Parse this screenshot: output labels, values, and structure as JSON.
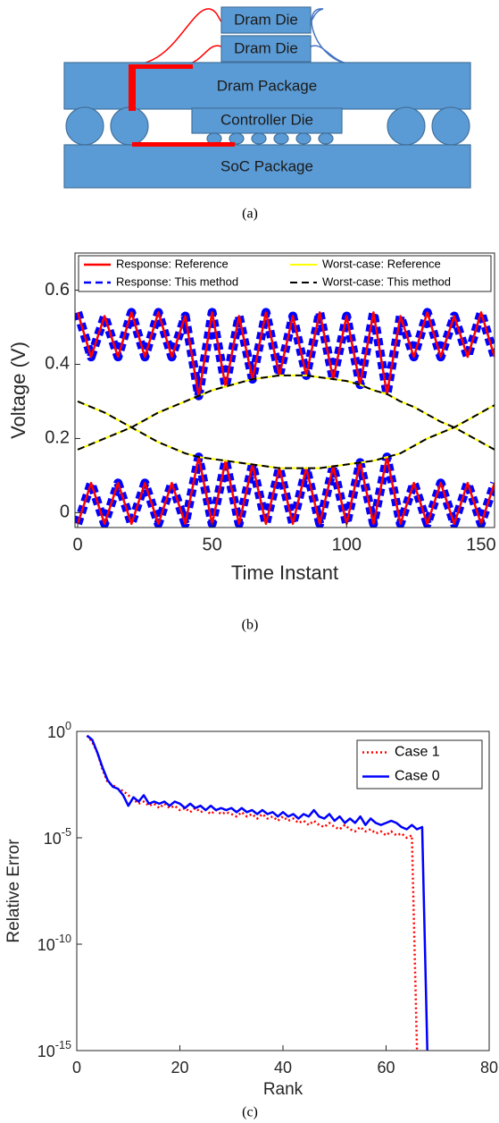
{
  "diagram": {
    "labels": [
      "Dram Die",
      "Dram Die",
      "Dram Package",
      "Controller Die",
      "SoC Package"
    ],
    "caption": "(a)"
  },
  "chart_data": [
    {
      "type": "line",
      "caption": "(b)",
      "xlabel": "Time Instant",
      "ylabel": "Voltage (V)",
      "xlim": [
        -1,
        155
      ],
      "xticks": [
        0,
        50,
        100,
        150
      ],
      "ylim": [
        -0.04,
        0.7
      ],
      "yticks": [
        0,
        0.2,
        0.4,
        0.6
      ],
      "legend": "top",
      "legend_columns": 2,
      "x": [
        0,
        5,
        10,
        15,
        20,
        25,
        30,
        35,
        40,
        45,
        50,
        55,
        60,
        65,
        70,
        75,
        80,
        85,
        90,
        95,
        100,
        105,
        110,
        115,
        120,
        125,
        130,
        135,
        140,
        145,
        150,
        155
      ],
      "series": [
        {
          "name": "Response: Reference",
          "color": "#ff0000",
          "style": "solid",
          "traces": [
            [
              0.54,
              0.42,
              0.53,
              0.42,
              0.54,
              0.42,
              0.54,
              0.42,
              0.53,
              0.315,
              0.54,
              0.34,
              0.53,
              0.36,
              0.54,
              0.37,
              0.53,
              0.37,
              0.54,
              0.36,
              0.53,
              0.345,
              0.54,
              0.32,
              0.53,
              0.42,
              0.54,
              0.42,
              0.53,
              0.42,
              0.54,
              0.42
            ],
            [
              -0.03,
              0.08,
              -0.03,
              0.08,
              -0.03,
              0.08,
              -0.03,
              0.08,
              -0.03,
              0.15,
              -0.03,
              0.14,
              -0.03,
              0.13,
              -0.03,
              0.12,
              -0.03,
              0.12,
              -0.03,
              0.125,
              -0.03,
              0.135,
              -0.03,
              0.15,
              -0.03,
              0.08,
              -0.03,
              0.08,
              -0.03,
              0.08,
              -0.03,
              0.08
            ]
          ]
        },
        {
          "name": "Response: This method",
          "color": "#0000ff",
          "style": "dashed",
          "traces": [
            [
              0.54,
              0.42,
              0.53,
              0.42,
              0.54,
              0.42,
              0.54,
              0.42,
              0.53,
              0.315,
              0.54,
              0.34,
              0.53,
              0.36,
              0.54,
              0.37,
              0.53,
              0.37,
              0.54,
              0.36,
              0.53,
              0.345,
              0.54,
              0.32,
              0.53,
              0.42,
              0.54,
              0.42,
              0.53,
              0.42,
              0.54,
              0.42
            ],
            [
              -0.03,
              0.08,
              -0.03,
              0.08,
              -0.03,
              0.08,
              -0.03,
              0.08,
              -0.03,
              0.15,
              -0.03,
              0.14,
              -0.03,
              0.13,
              -0.03,
              0.12,
              -0.03,
              0.12,
              -0.03,
              0.125,
              -0.03,
              0.135,
              -0.03,
              0.15,
              -0.03,
              0.08,
              -0.03,
              0.08,
              -0.03,
              0.08,
              -0.03,
              0.08
            ]
          ]
        },
        {
          "name": "Worst-case: Reference",
          "color": "#ffff00",
          "style": "solid",
          "traces": [
            [
              0.17,
              0.185,
              0.2,
              0.215,
              0.23,
              0.25,
              0.27,
              0.285,
              0.3,
              0.315,
              0.33,
              0.34,
              0.35,
              0.36,
              0.365,
              0.37,
              0.37,
              0.37,
              0.365,
              0.36,
              0.355,
              0.345,
              0.33,
              0.32,
              0.3,
              0.285,
              0.265,
              0.245,
              0.23,
              0.21,
              0.19,
              0.17
            ],
            [
              0.3,
              0.285,
              0.27,
              0.25,
              0.23,
              0.21,
              0.19,
              0.175,
              0.16,
              0.15,
              0.145,
              0.14,
              0.135,
              0.13,
              0.125,
              0.12,
              0.12,
              0.12,
              0.12,
              0.125,
              0.13,
              0.135,
              0.14,
              0.15,
              0.16,
              0.18,
              0.2,
              0.215,
              0.23,
              0.25,
              0.27,
              0.29
            ]
          ]
        },
        {
          "name": "Worst-case: This method",
          "color": "#000000",
          "style": "dashed",
          "traces": [
            [
              0.17,
              0.185,
              0.2,
              0.215,
              0.23,
              0.25,
              0.27,
              0.285,
              0.3,
              0.315,
              0.33,
              0.34,
              0.35,
              0.36,
              0.365,
              0.37,
              0.37,
              0.37,
              0.365,
              0.36,
              0.355,
              0.345,
              0.33,
              0.32,
              0.3,
              0.285,
              0.265,
              0.245,
              0.23,
              0.21,
              0.19,
              0.17
            ],
            [
              0.3,
              0.285,
              0.27,
              0.25,
              0.23,
              0.21,
              0.19,
              0.175,
              0.16,
              0.15,
              0.145,
              0.14,
              0.135,
              0.13,
              0.125,
              0.12,
              0.12,
              0.12,
              0.12,
              0.125,
              0.13,
              0.135,
              0.14,
              0.15,
              0.16,
              0.18,
              0.2,
              0.215,
              0.23,
              0.25,
              0.27,
              0.29
            ]
          ]
        }
      ]
    },
    {
      "type": "line",
      "caption": "(c)",
      "xlabel": "Rank",
      "ylabel": "Relative Error",
      "xlim": [
        0,
        80
      ],
      "xticks": [
        0,
        20,
        40,
        60,
        80
      ],
      "ylim": [
        1e-15,
        1
      ],
      "log_y": true,
      "yticks": [
        {
          "value": 1e-15,
          "label": "10^-15"
        },
        {
          "value": 1e-10,
          "label": "10^-10"
        },
        {
          "value": 1e-05,
          "label": "10^-5"
        },
        {
          "value": 1,
          "label": "10^0"
        }
      ],
      "legend": "upper right",
      "legend_columns": 1,
      "series": [
        {
          "name": "Case 1",
          "color": "#ff0000",
          "style": "dotted",
          "x": [
            2,
            3,
            4,
            5,
            6,
            7,
            8,
            9,
            10,
            11,
            12,
            13,
            14,
            15,
            16,
            17,
            18,
            19,
            20,
            21,
            22,
            23,
            24,
            25,
            26,
            27,
            28,
            29,
            30,
            31,
            32,
            33,
            34,
            35,
            36,
            37,
            38,
            39,
            40,
            41,
            42,
            43,
            44,
            45,
            46,
            47,
            48,
            49,
            50,
            51,
            52,
            53,
            54,
            55,
            56,
            57,
            58,
            59,
            60,
            61,
            62,
            63,
            64,
            65,
            66
          ],
          "values": [
            0.63,
            0.32,
            0.1,
            0.016,
            0.004,
            0.003,
            0.002,
            0.0016,
            0.001,
            0.00063,
            0.0004,
            0.0005,
            0.00032,
            0.0004,
            0.00025,
            0.0004,
            0.00025,
            0.00032,
            0.0002,
            0.00025,
            0.00016,
            0.00025,
            0.00016,
            0.0002,
            0.00013,
            0.0002,
            0.00013,
            0.00016,
            0.00013,
            0.0001,
            0.00016,
            0.0001,
            0.00013,
            8e-05,
            0.00013,
            8e-05,
            0.0001,
            6.3e-05,
            0.0001,
            6.3e-05,
            8e-05,
            5e-05,
            6.3e-05,
            4e-05,
            6.3e-05,
            4e-05,
            3.2e-05,
            5e-05,
            3.2e-05,
            2.5e-05,
            4e-05,
            2.5e-05,
            2e-05,
            3.2e-05,
            2e-05,
            2.5e-05,
            1.6e-05,
            2e-05,
            1.3e-05,
            2e-05,
            1.3e-05,
            1.6e-05,
            1e-05,
            1.3e-05,
            1e-15
          ]
        },
        {
          "name": "Case 0",
          "color": "#0000ff",
          "style": "solid",
          "x": [
            2,
            3,
            4,
            5,
            6,
            7,
            8,
            9,
            10,
            11,
            12,
            13,
            14,
            15,
            16,
            17,
            18,
            19,
            20,
            21,
            22,
            23,
            24,
            25,
            26,
            27,
            28,
            29,
            30,
            31,
            32,
            33,
            34,
            35,
            36,
            37,
            38,
            39,
            40,
            41,
            42,
            43,
            44,
            45,
            46,
            47,
            48,
            49,
            50,
            51,
            52,
            53,
            54,
            55,
            56,
            57,
            58,
            59,
            60,
            61,
            62,
            63,
            64,
            65,
            66,
            67,
            68
          ],
          "values": [
            0.63,
            0.4,
            0.1,
            0.02,
            0.005,
            0.0025,
            0.002,
            0.001,
            0.00032,
            0.0008,
            0.0005,
            0.001,
            0.0004,
            0.0005,
            0.0004,
            0.0005,
            0.00032,
            0.0005,
            0.0004,
            0.00025,
            0.0004,
            0.00025,
            0.00032,
            0.0002,
            0.00032,
            0.0002,
            0.00025,
            0.0002,
            0.00025,
            0.00016,
            0.00025,
            0.00016,
            0.0002,
            0.00013,
            0.0002,
            0.00013,
            0.00016,
            0.0001,
            0.00016,
            0.0001,
            0.00013,
            8e-05,
            0.00013,
            0.0001,
            0.0002,
            0.0001,
            8e-05,
            0.00013,
            6.3e-05,
            0.0001,
            5e-05,
            8e-05,
            5e-05,
            0.0001,
            4e-05,
            8e-05,
            5e-05,
            4e-05,
            5e-05,
            6.3e-05,
            5e-05,
            3.2e-05,
            2.5e-05,
            4e-05,
            2.5e-05,
            3.2e-05,
            1e-15
          ]
        }
      ]
    }
  ]
}
